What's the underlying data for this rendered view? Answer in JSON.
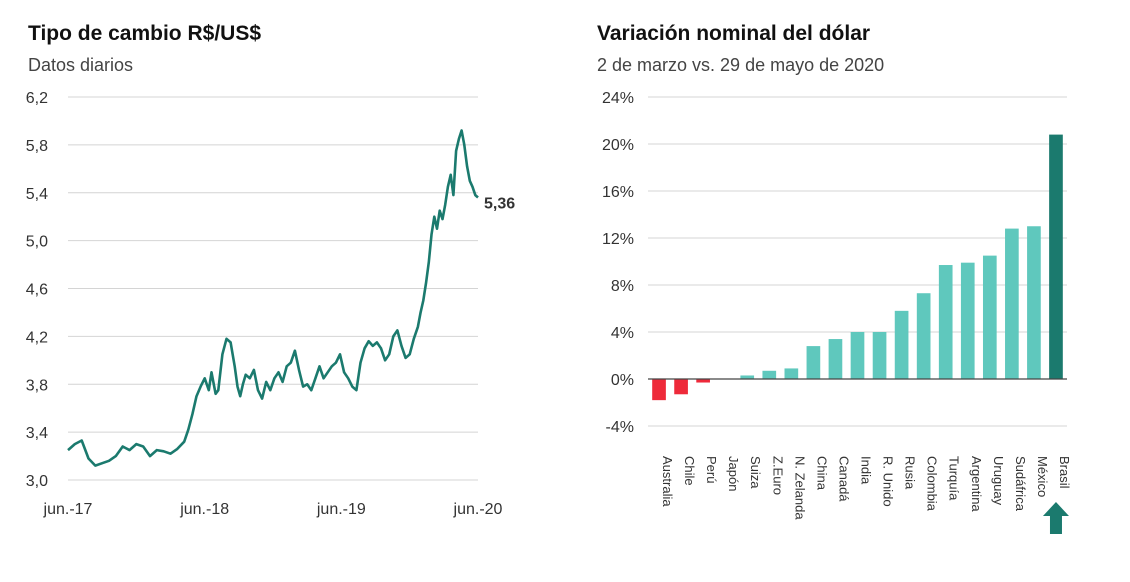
{
  "charts": {
    "left": {
      "title": "Tipo de cambio R$/US$",
      "subtitle": "Datos diarios"
    },
    "right": {
      "title": "Variación nominal del dólar",
      "subtitle": "2 de marzo vs. 29 de mayo de 2020"
    }
  },
  "chart_data": [
    {
      "type": "line",
      "title": "Tipo de cambio R$/US$",
      "subtitle": "Datos diarios",
      "ylim": [
        3.0,
        6.2
      ],
      "y_ticks": [
        "3,0",
        "3,4",
        "3,8",
        "4,2",
        "4,6",
        "5,0",
        "5,4",
        "5,8",
        "6,2"
      ],
      "x_tick_labels": [
        "jun.-17",
        "jun.-18",
        "jun.-19",
        "jun.-20"
      ],
      "x_ticks_t": [
        0,
        1,
        2,
        3
      ],
      "grid": "horizontal",
      "color": "#1b7a6e",
      "end_label": "5,36",
      "x": [
        0.0,
        0.05,
        0.1,
        0.15,
        0.2,
        0.25,
        0.3,
        0.35,
        0.4,
        0.45,
        0.5,
        0.55,
        0.6,
        0.65,
        0.7,
        0.75,
        0.8,
        0.85,
        0.88,
        0.91,
        0.94,
        0.97,
        1.0,
        1.03,
        1.05,
        1.08,
        1.1,
        1.13,
        1.16,
        1.19,
        1.22,
        1.24,
        1.26,
        1.28,
        1.3,
        1.33,
        1.36,
        1.39,
        1.42,
        1.45,
        1.48,
        1.51,
        1.54,
        1.57,
        1.6,
        1.63,
        1.66,
        1.69,
        1.72,
        1.75,
        1.78,
        1.81,
        1.84,
        1.87,
        1.9,
        1.93,
        1.96,
        1.99,
        2.02,
        2.05,
        2.08,
        2.11,
        2.14,
        2.17,
        2.2,
        2.23,
        2.26,
        2.29,
        2.32,
        2.35,
        2.38,
        2.41,
        2.44,
        2.47,
        2.5,
        2.53,
        2.56,
        2.58,
        2.6,
        2.62,
        2.64,
        2.66,
        2.68,
        2.7,
        2.72,
        2.74,
        2.76,
        2.78,
        2.8,
        2.82,
        2.84,
        2.86,
        2.88,
        2.9,
        2.92,
        2.94,
        2.96,
        2.98,
        3.0
      ],
      "values": [
        3.25,
        3.3,
        3.33,
        3.18,
        3.12,
        3.14,
        3.16,
        3.2,
        3.28,
        3.25,
        3.3,
        3.28,
        3.2,
        3.25,
        3.24,
        3.22,
        3.26,
        3.32,
        3.42,
        3.55,
        3.7,
        3.78,
        3.85,
        3.75,
        3.9,
        3.72,
        3.75,
        4.05,
        4.18,
        4.15,
        3.95,
        3.78,
        3.7,
        3.8,
        3.88,
        3.85,
        3.92,
        3.75,
        3.68,
        3.82,
        3.75,
        3.85,
        3.9,
        3.82,
        3.95,
        3.98,
        4.08,
        3.92,
        3.78,
        3.8,
        3.75,
        3.85,
        3.95,
        3.85,
        3.9,
        3.95,
        3.98,
        4.05,
        3.9,
        3.85,
        3.78,
        3.75,
        3.98,
        4.1,
        4.16,
        4.12,
        4.15,
        4.1,
        4.0,
        4.05,
        4.2,
        4.25,
        4.12,
        4.02,
        4.05,
        4.18,
        4.28,
        4.4,
        4.5,
        4.65,
        4.82,
        5.05,
        5.2,
        5.1,
        5.25,
        5.18,
        5.3,
        5.45,
        5.55,
        5.38,
        5.75,
        5.85,
        5.92,
        5.8,
        5.62,
        5.5,
        5.45,
        5.38,
        5.36
      ]
    },
    {
      "type": "bar",
      "title": "Variación nominal del dólar",
      "subtitle": "2 de marzo vs. 29 de mayo de 2020",
      "ylim": [
        -4,
        24
      ],
      "y_ticks": [
        "-4%",
        "0%",
        "4%",
        "8%",
        "12%",
        "16%",
        "20%",
        "24%"
      ],
      "grid": "horizontal",
      "categories": [
        "Australia",
        "Chile",
        "Perú",
        "Japón",
        "Suiza",
        "Z.Euro",
        "N. Zelanda",
        "China",
        "Canadá",
        "India",
        "R. Unido",
        "Rusia",
        "Colombia",
        "Turquía",
        "Argentina",
        "Uruguay",
        "Sudáfrica",
        "México",
        "Brasil"
      ],
      "values": [
        -1.8,
        -1.3,
        -0.3,
        0.0,
        0.3,
        0.7,
        0.9,
        2.8,
        3.4,
        4.0,
        4.0,
        5.8,
        7.3,
        9.7,
        9.9,
        10.5,
        12.8,
        13.0,
        20.8
      ],
      "colors": {
        "negative": "#ee2a3a",
        "positive": "#5fc8bd",
        "highlight": "#1b7a6e"
      },
      "highlight_category": "Brasil",
      "highlight_marker": "up-arrow-icon"
    }
  ]
}
